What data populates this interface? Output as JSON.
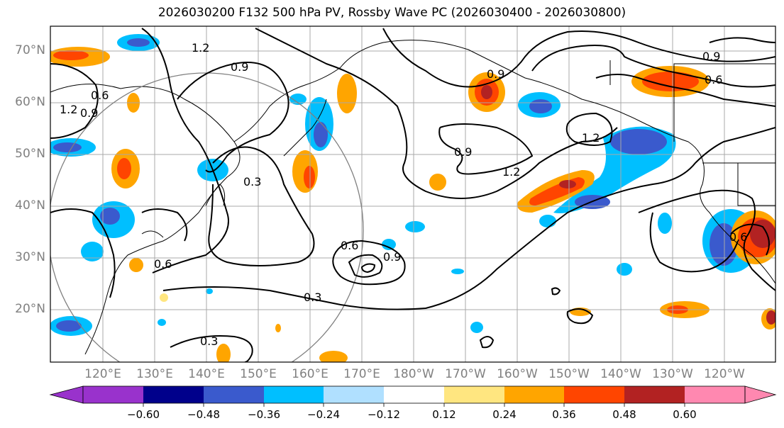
{
  "title": "2026030200 F132 500 hPa PV, Rossby Wave PC (2026030400 - 2026030800)",
  "lat_labels": [
    "70°N",
    "60°N",
    "50°N",
    "40°N",
    "30°N",
    "20°N"
  ],
  "lon_labels": [
    "120°E",
    "130°E",
    "140°E",
    "150°E",
    "160°E",
    "170°E",
    "180°W",
    "170°W",
    "160°W",
    "150°W",
    "140°W",
    "130°W",
    "120°W"
  ],
  "contour_labels": [
    "1.2",
    "0.9",
    "0.6",
    "1.2",
    "0.9",
    "0.3",
    "0.6",
    "0.6",
    "0.9",
    "0.3",
    "0.3",
    "0.9",
    "1.2",
    "1.2",
    "0.9",
    "0.6",
    "0.6",
    "0.9"
  ],
  "colorbar": {
    "labels": [
      "−0.60",
      "−0.48",
      "−0.36",
      "−0.24",
      "−0.12",
      "0.12",
      "0.24",
      "0.36",
      "0.48",
      "0.60"
    ],
    "colors": [
      "#9932cc",
      "#00008b",
      "#3a5acd",
      "#00bfff",
      "#b0e0ff",
      "#ffffff",
      "#ffe680",
      "#ffa500",
      "#ff4500",
      "#b22222",
      "#ff88b0"
    ]
  },
  "colors": {
    "neg_light": "#00bfff",
    "neg_mid": "#3a5acd",
    "pos_light": "#ffa500",
    "pos_mid": "#ff4500",
    "pos_dark": "#b22222",
    "pos_pale": "#ffe680"
  }
}
